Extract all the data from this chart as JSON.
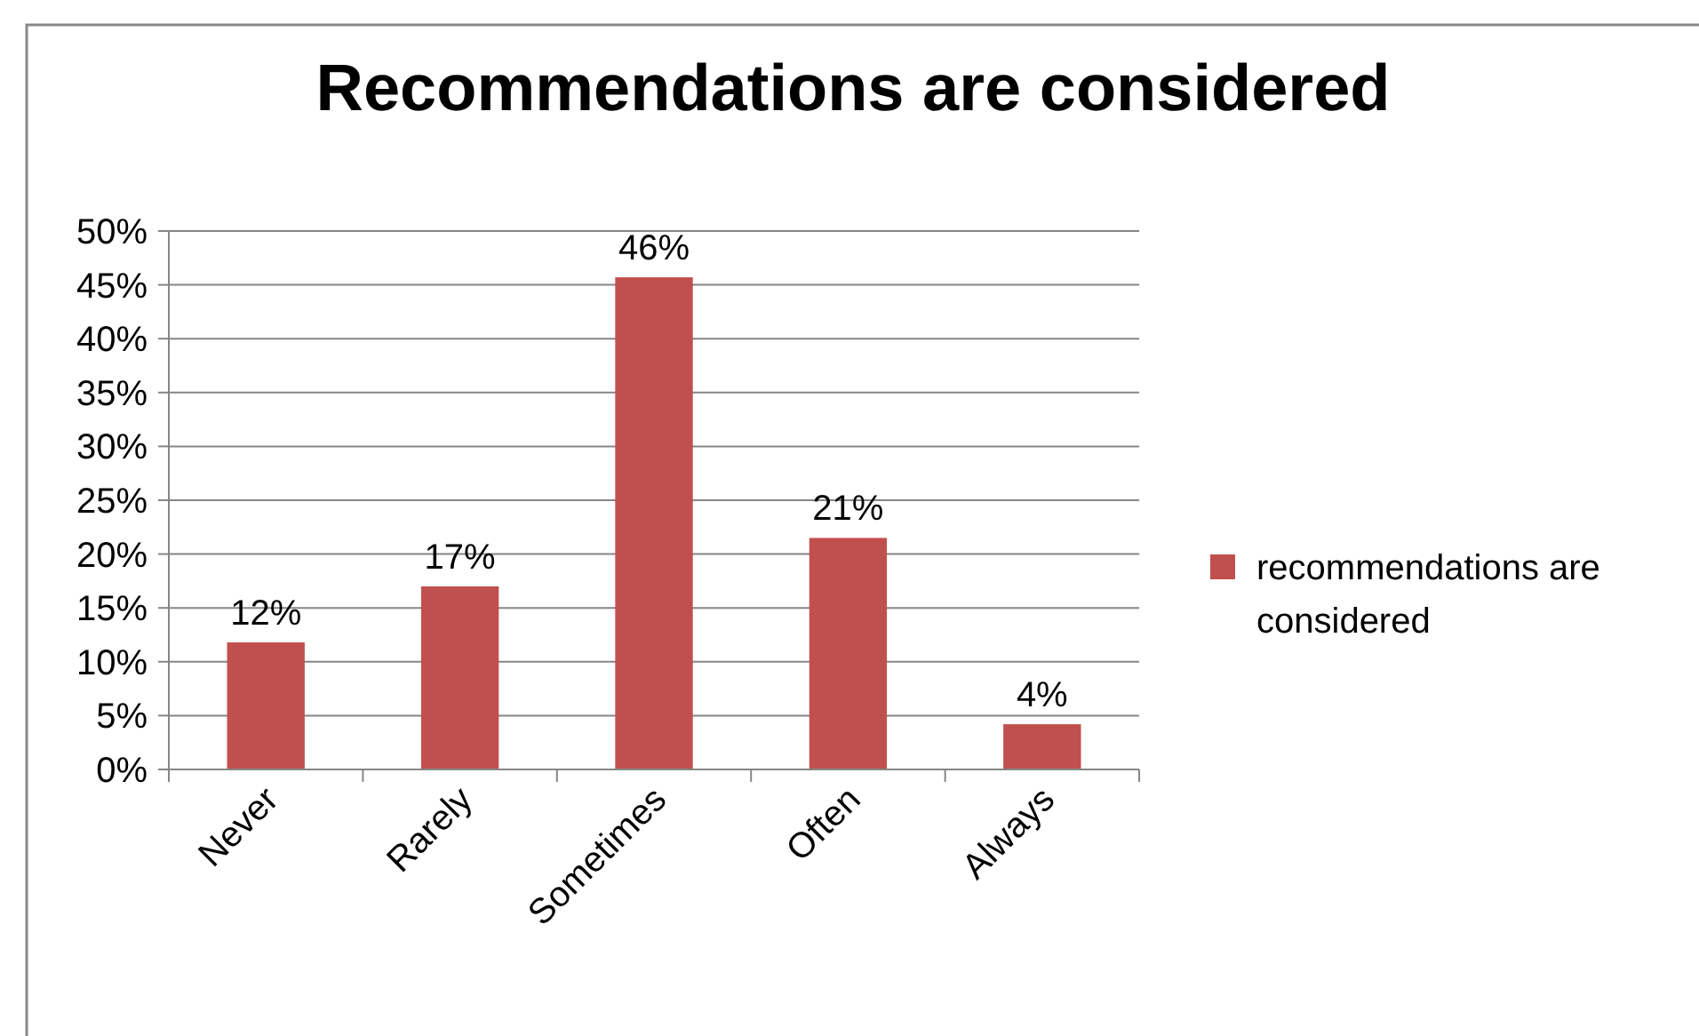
{
  "chart_data": {
    "type": "bar",
    "title": "Recommendations are considered",
    "categories": [
      "Never",
      "Rarely",
      "Sometimes",
      "Often",
      "Always"
    ],
    "series": [
      {
        "name": "recommendations are considered",
        "color": "#c0504d",
        "values": [
          11.8,
          17,
          45.7,
          21.5,
          4.2
        ]
      }
    ],
    "value_labels": [
      "12%",
      "17%",
      "46%",
      "21%",
      "4%"
    ],
    "ylim": [
      0,
      50
    ],
    "yticks": [
      {
        "value": 0,
        "label": "0%"
      },
      {
        "value": 5,
        "label": "5%"
      },
      {
        "value": 10,
        "label": "10%"
      },
      {
        "value": 15,
        "label": "15%"
      },
      {
        "value": 20,
        "label": "20%"
      },
      {
        "value": 25,
        "label": "25%"
      },
      {
        "value": 30,
        "label": "30%"
      },
      {
        "value": 35,
        "label": "35%"
      },
      {
        "value": 40,
        "label": "40%"
      },
      {
        "value": 45,
        "label": "45%"
      },
      {
        "value": 50,
        "label": "50%"
      }
    ],
    "grid": "y",
    "legend": "right"
  }
}
